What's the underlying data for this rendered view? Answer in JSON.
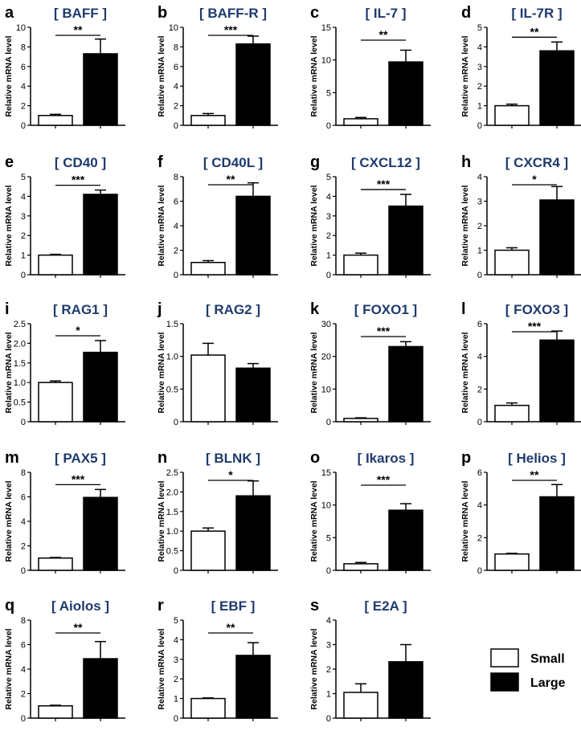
{
  "figure": {
    "ylabel": "Relative mRNA level",
    "legend": [
      {
        "name": "Small",
        "color": "#ffffff"
      },
      {
        "name": "Large",
        "color": "#000000"
      }
    ]
  },
  "chart_data": [
    {
      "panel": "a",
      "title": "[ BAFF ]",
      "type": "bar",
      "categories": [
        "Small",
        "Large"
      ],
      "values": [
        1.0,
        7.3
      ],
      "errors": [
        0.12,
        1.5
      ],
      "ylim": [
        0,
        10
      ],
      "yticks": [
        "0",
        "2",
        "4",
        "6",
        "8",
        "10"
      ],
      "significance": "**"
    },
    {
      "panel": "b",
      "title": "[ BAFF-R ]",
      "type": "bar",
      "categories": [
        "Small",
        "Large"
      ],
      "values": [
        1.0,
        8.3
      ],
      "errors": [
        0.2,
        0.8
      ],
      "ylim": [
        0,
        10
      ],
      "yticks": [
        "0",
        "2",
        "4",
        "6",
        "8",
        "10"
      ],
      "significance": "***"
    },
    {
      "panel": "c",
      "title": "[ IL-7 ]",
      "type": "bar",
      "categories": [
        "Small",
        "Large"
      ],
      "values": [
        1.0,
        9.7
      ],
      "errors": [
        0.2,
        1.8
      ],
      "ylim": [
        0,
        15
      ],
      "yticks": [
        "0",
        "5",
        "10",
        "15"
      ],
      "significance": "**"
    },
    {
      "panel": "d",
      "title": "[ IL-7R ]",
      "type": "bar",
      "categories": [
        "Small",
        "Large"
      ],
      "values": [
        1.0,
        3.8
      ],
      "errors": [
        0.08,
        0.45
      ],
      "ylim": [
        0,
        5
      ],
      "yticks": [
        "0",
        "1",
        "2",
        "3",
        "4",
        "5"
      ],
      "significance": "**"
    },
    {
      "panel": "e",
      "title": "[ CD40 ]",
      "type": "bar",
      "categories": [
        "Small",
        "Large"
      ],
      "values": [
        1.0,
        4.1
      ],
      "errors": [
        0.04,
        0.22
      ],
      "ylim": [
        0,
        5
      ],
      "yticks": [
        "0",
        "1",
        "2",
        "3",
        "4",
        "5"
      ],
      "significance": "***"
    },
    {
      "panel": "f",
      "title": "[ CD40L ]",
      "type": "bar",
      "categories": [
        "Small",
        "Large"
      ],
      "values": [
        1.0,
        6.4
      ],
      "errors": [
        0.15,
        1.1
      ],
      "ylim": [
        0,
        8
      ],
      "yticks": [
        "0",
        "2",
        "4",
        "6",
        "8"
      ],
      "significance": "**"
    },
    {
      "panel": "g",
      "title": "[ CXCL12 ]",
      "type": "bar",
      "categories": [
        "Small",
        "Large"
      ],
      "values": [
        1.0,
        3.5
      ],
      "errors": [
        0.1,
        0.6
      ],
      "ylim": [
        0,
        5
      ],
      "yticks": [
        "0",
        "1",
        "2",
        "3",
        "4",
        "5"
      ],
      "significance": "***"
    },
    {
      "panel": "h",
      "title": "[ CXCR4 ]",
      "type": "bar",
      "categories": [
        "Small",
        "Large"
      ],
      "values": [
        1.0,
        3.05
      ],
      "errors": [
        0.1,
        0.55
      ],
      "ylim": [
        0,
        4
      ],
      "yticks": [
        "0",
        "1",
        "2",
        "3",
        "4"
      ],
      "significance": "*"
    },
    {
      "panel": "i",
      "title": "[ RAG1 ]",
      "type": "bar",
      "categories": [
        "Small",
        "Large"
      ],
      "values": [
        1.0,
        1.77
      ],
      "errors": [
        0.04,
        0.3
      ],
      "ylim": [
        0,
        2.5
      ],
      "yticks": [
        "0",
        "0.5",
        "1.0",
        "1.5",
        "2.0",
        "2.5"
      ],
      "significance": "*"
    },
    {
      "panel": "j",
      "title": "[ RAG2 ]",
      "type": "bar",
      "categories": [
        "Small",
        "Large"
      ],
      "values": [
        1.02,
        0.82
      ],
      "errors": [
        0.18,
        0.07
      ],
      "ylim": [
        0,
        1.5
      ],
      "yticks": [
        "0",
        "0.5",
        "1.0",
        "1.5"
      ],
      "significance": ""
    },
    {
      "panel": "k",
      "title": "[ FOXO1 ]",
      "type": "bar",
      "categories": [
        "Small",
        "Large"
      ],
      "values": [
        1.0,
        23.0
      ],
      "errors": [
        0.2,
        1.5
      ],
      "ylim": [
        0,
        30
      ],
      "yticks": [
        "0",
        "10",
        "20",
        "30"
      ],
      "significance": "***"
    },
    {
      "panel": "l",
      "title": "[ FOXO3 ]",
      "type": "bar",
      "categories": [
        "Small",
        "Large"
      ],
      "values": [
        1.0,
        5.0
      ],
      "errors": [
        0.15,
        0.55
      ],
      "ylim": [
        0,
        6
      ],
      "yticks": [
        "0",
        "2",
        "4",
        "6"
      ],
      "significance": "***"
    },
    {
      "panel": "m",
      "title": "[ PAX5 ]",
      "type": "bar",
      "categories": [
        "Small",
        "Large"
      ],
      "values": [
        1.0,
        5.95
      ],
      "errors": [
        0.05,
        0.65
      ],
      "ylim": [
        0,
        8
      ],
      "yticks": [
        "0",
        "2",
        "4",
        "6",
        "8"
      ],
      "significance": "***"
    },
    {
      "panel": "n",
      "title": "[ BLNK ]",
      "type": "bar",
      "categories": [
        "Small",
        "Large"
      ],
      "values": [
        1.0,
        1.9
      ],
      "errors": [
        0.08,
        0.38
      ],
      "ylim": [
        0,
        2.5
      ],
      "yticks": [
        "0",
        "0.5",
        "1.0",
        "1.5",
        "2.0",
        "2.5"
      ],
      "significance": "*"
    },
    {
      "panel": "o",
      "title": "[ Ikaros ]",
      "type": "bar",
      "categories": [
        "Small",
        "Large"
      ],
      "values": [
        1.0,
        9.2
      ],
      "errors": [
        0.2,
        1.0
      ],
      "ylim": [
        0,
        15
      ],
      "yticks": [
        "0",
        "5",
        "10",
        "15"
      ],
      "significance": "***"
    },
    {
      "panel": "p",
      "title": "[ Helios ]",
      "type": "bar",
      "categories": [
        "Small",
        "Large"
      ],
      "values": [
        1.0,
        4.5
      ],
      "errors": [
        0.04,
        0.75
      ],
      "ylim": [
        0,
        6
      ],
      "yticks": [
        "0",
        "2",
        "4",
        "6"
      ],
      "significance": "**"
    },
    {
      "panel": "q",
      "title": "[ Aiolos ]",
      "type": "bar",
      "categories": [
        "Small",
        "Large"
      ],
      "values": [
        1.0,
        4.85
      ],
      "errors": [
        0.05,
        1.4
      ],
      "ylim": [
        0,
        8
      ],
      "yticks": [
        "0",
        "2",
        "4",
        "6",
        "8"
      ],
      "significance": "**"
    },
    {
      "panel": "r",
      "title": "[ EBF ]",
      "type": "bar",
      "categories": [
        "Small",
        "Large"
      ],
      "values": [
        1.0,
        3.2
      ],
      "errors": [
        0.03,
        0.65
      ],
      "ylim": [
        0,
        5
      ],
      "yticks": [
        "0",
        "1",
        "2",
        "3",
        "4",
        "5"
      ],
      "significance": "**"
    },
    {
      "panel": "s",
      "title": "[ E2A ]",
      "type": "bar",
      "categories": [
        "Small",
        "Large"
      ],
      "values": [
        1.05,
        2.3
      ],
      "errors": [
        0.35,
        0.7
      ],
      "ylim": [
        0,
        4
      ],
      "yticks": [
        "0",
        "1",
        "2",
        "3",
        "4"
      ],
      "significance": ""
    }
  ]
}
